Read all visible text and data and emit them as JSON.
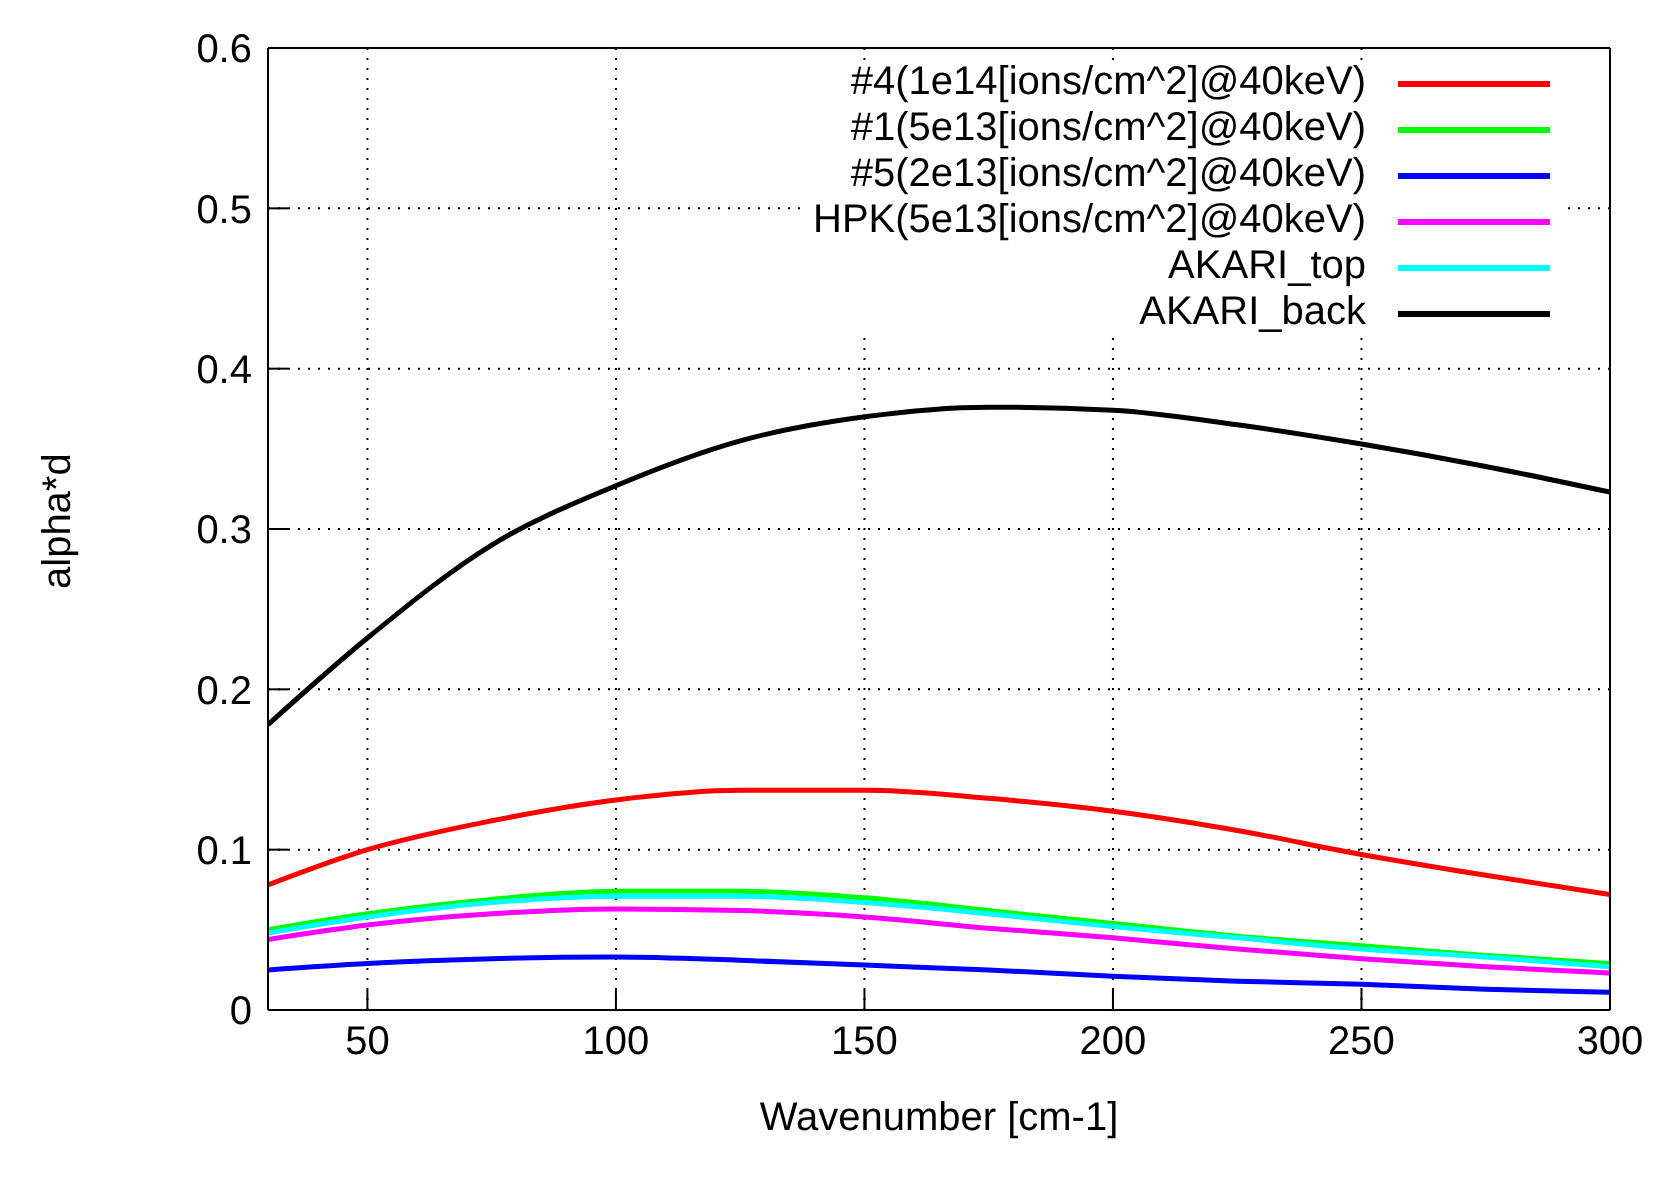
{
  "chart_data": {
    "type": "line",
    "xlabel": "Wavenumber [cm-1]",
    "ylabel": "alpha*d",
    "x": [
      30,
      50,
      75,
      100,
      125,
      150,
      175,
      200,
      225,
      250,
      275,
      300
    ],
    "series": [
      {
        "name": "#4(1e14[ions/cm^2]@40keV)",
        "color": "#ff0000",
        "values": [
          0.078,
          0.1,
          0.118,
          0.131,
          0.137,
          0.137,
          0.132,
          0.124,
          0.112,
          0.097,
          0.084,
          0.072
        ]
      },
      {
        "name": "#1(5e13[ions/cm^2]@40keV)",
        "color": "#00ff00",
        "values": [
          0.05,
          0.06,
          0.069,
          0.074,
          0.074,
          0.07,
          0.062,
          0.054,
          0.046,
          0.04,
          0.034,
          0.029
        ]
      },
      {
        "name": "#5(2e13[ions/cm^2]@40keV)",
        "color": "#0000ff",
        "values": [
          0.025,
          0.029,
          0.032,
          0.033,
          0.031,
          0.028,
          0.025,
          0.021,
          0.018,
          0.016,
          0.013,
          0.011
        ]
      },
      {
        "name": "HPK(5e13[ions/cm^2]@40keV)",
        "color": "#ff00ff",
        "values": [
          0.044,
          0.053,
          0.06,
          0.063,
          0.062,
          0.058,
          0.051,
          0.045,
          0.038,
          0.032,
          0.027,
          0.023
        ]
      },
      {
        "name": "AKARI_top",
        "color": "#00ffff",
        "values": [
          0.048,
          0.058,
          0.067,
          0.071,
          0.071,
          0.067,
          0.06,
          0.052,
          0.045,
          0.038,
          0.033,
          0.027
        ]
      },
      {
        "name": "AKARI_back",
        "color": "#000000",
        "values": [
          0.178,
          0.232,
          0.29,
          0.327,
          0.355,
          0.37,
          0.376,
          0.374,
          0.365,
          0.353,
          0.339,
          0.323
        ]
      }
    ],
    "xlim": [
      30,
      300
    ],
    "xticks": [
      50,
      100,
      150,
      200,
      250,
      300
    ],
    "ylim": [
      0,
      0.6
    ],
    "yticks": [
      0,
      0.1,
      0.2,
      0.3,
      0.4,
      0.5,
      0.6
    ],
    "grid": true,
    "legend": "top right",
    "marker": "none",
    "line_style": "solid"
  }
}
